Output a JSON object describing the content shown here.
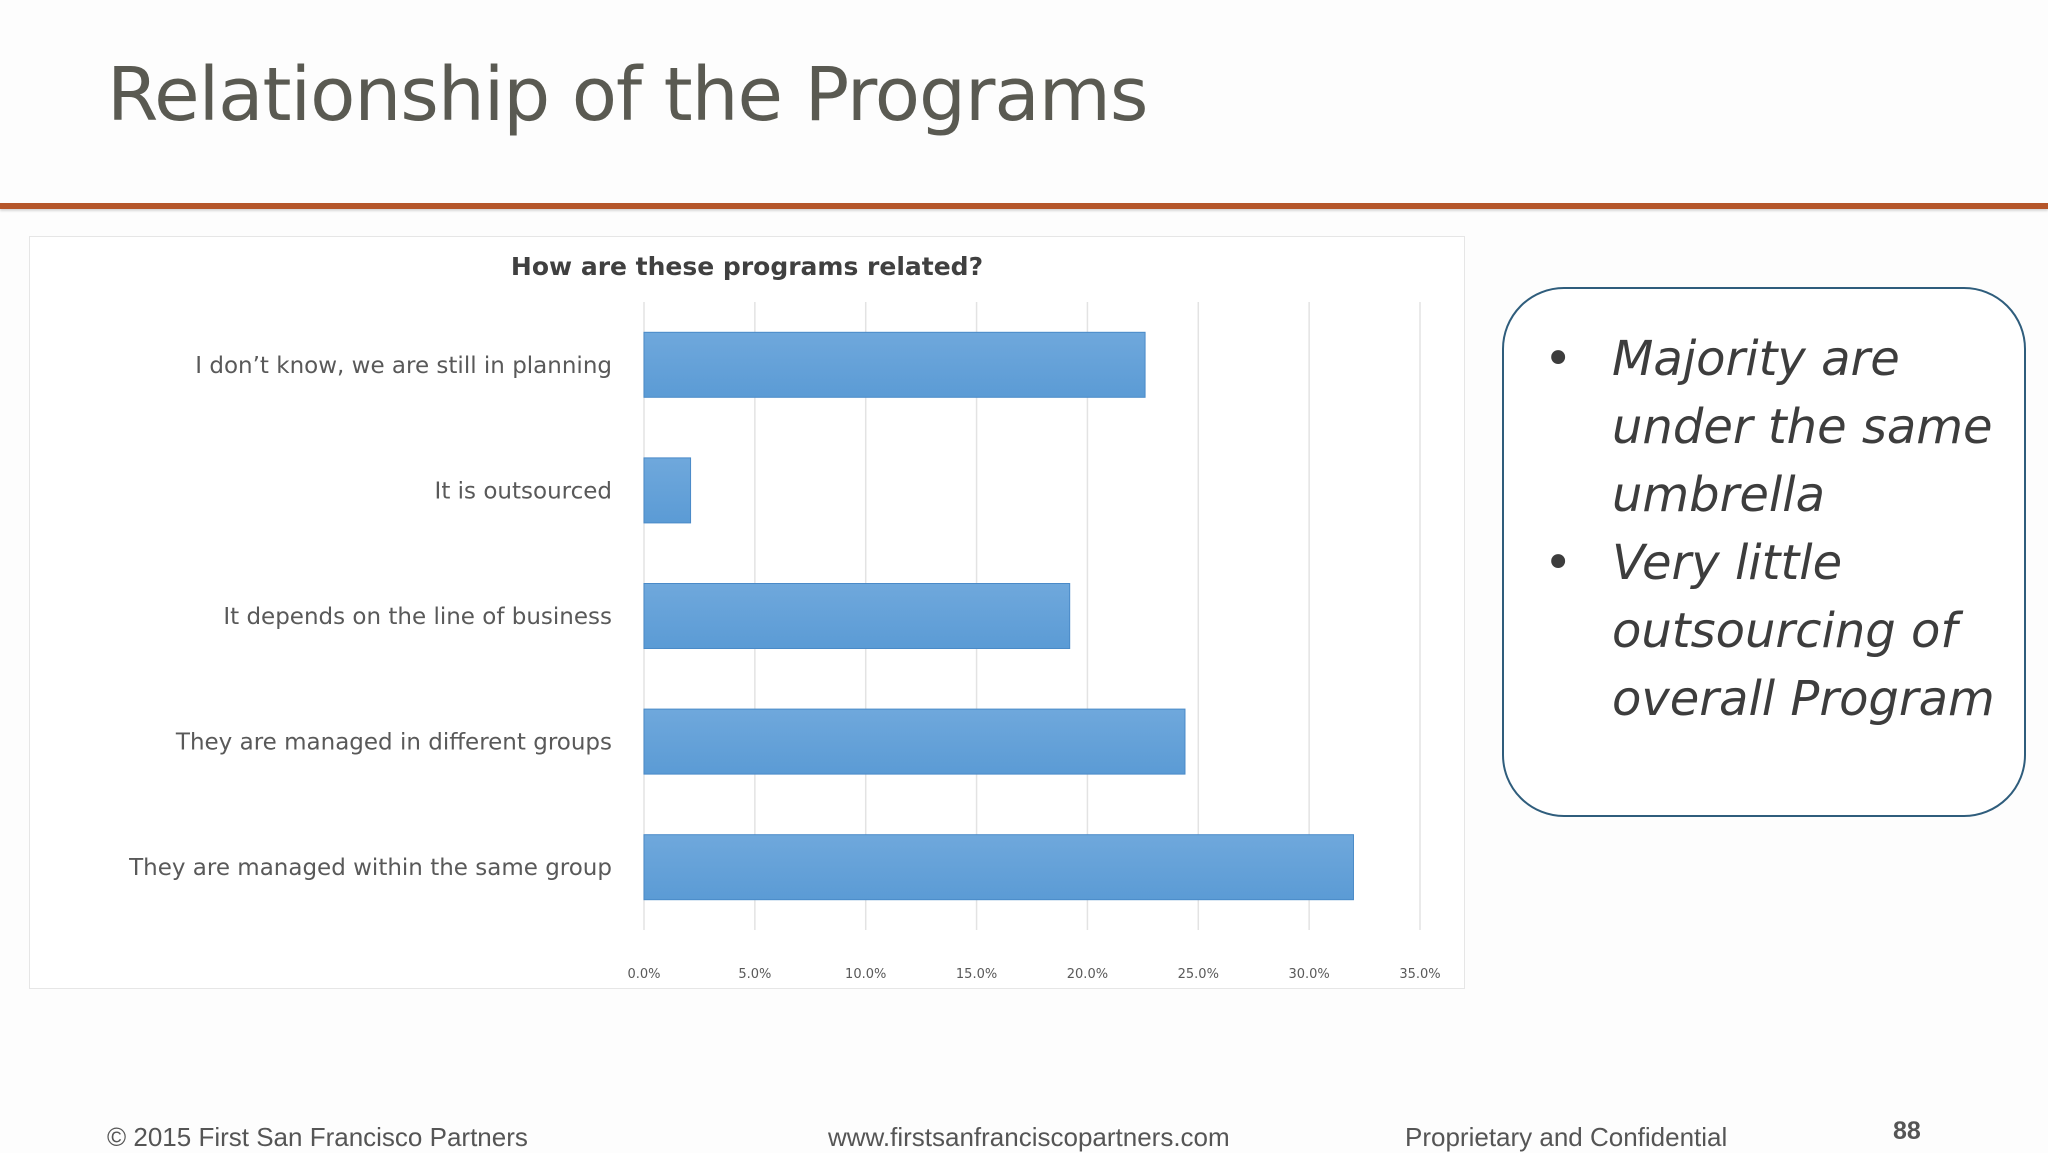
{
  "slide": {
    "title": "Relationship of the Programs"
  },
  "callout": {
    "bullets": [
      "Majority are under the same umbrella",
      "Very little outsourcing of overall Program"
    ],
    "bullet_symbol": "•"
  },
  "footer": {
    "copyright": "© 2015 First San Francisco Partners",
    "website": "www.firstsanfranciscopartners.com",
    "confidential": "Proprietary and Confidential",
    "page_number": "88"
  },
  "colors": {
    "accent_rule": "#b5562a",
    "bar_fill": "#5b9bd5",
    "callout_border": "#2f5d7c"
  },
  "chart_data": {
    "type": "bar",
    "orientation": "horizontal",
    "title": "How are these programs related?",
    "categories": [
      "I don’t know, we are still in planning",
      "It is outsourced",
      "It depends on the line of business",
      "They are managed in different groups",
      "They are managed within the same group"
    ],
    "values": [
      22.6,
      2.1,
      19.2,
      24.4,
      32.0
    ],
    "xlim": [
      0,
      35
    ],
    "ticks": [
      "0.0%",
      "5.0%",
      "10.0%",
      "15.0%",
      "20.0%",
      "25.0%",
      "30.0%",
      "35.0%"
    ],
    "grid": true,
    "legend": false,
    "xlabel": "",
    "ylabel": ""
  }
}
